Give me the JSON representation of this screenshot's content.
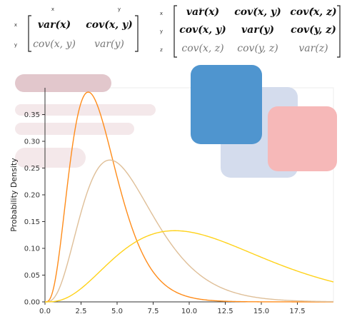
{
  "matrix2": {
    "col_headers": [
      "x",
      "y"
    ],
    "row_headers": [
      "x",
      "y"
    ],
    "rows": [
      [
        "var(x)",
        "cov(x, y)"
      ],
      [
        "cov(x, y)",
        "var(y)"
      ]
    ]
  },
  "matrix3": {
    "col_headers": [
      "x",
      "y",
      "z"
    ],
    "row_headers": [
      "x",
      "y",
      "z"
    ],
    "rows": [
      [
        "var(x)",
        "cov(x, y)",
        "cov(x, z)"
      ],
      [
        "cov(x, y)",
        "var(y)",
        "cov(y, z)"
      ],
      [
        "cov(x, z)",
        "cov(y, z)",
        "var(z)"
      ]
    ]
  },
  "chart_data": {
    "type": "line",
    "title": "",
    "xlabel": "",
    "ylabel": "Probability Density",
    "xlim": [
      0,
      20
    ],
    "ylim": [
      0,
      0.4
    ],
    "x_ticks": [
      "0.0",
      "2.5",
      "5.0",
      "7.5",
      "10.0",
      "12.5",
      "15.0",
      "17.5"
    ],
    "y_ticks": [
      "0.00",
      "0.05",
      "0.10",
      "0.15",
      "0.20",
      "0.25",
      "0.30",
      "0.35"
    ],
    "grid": false,
    "legend": "none",
    "series": [
      {
        "color": "#ff8c1a",
        "peak_x": 3.0,
        "peak_y": 0.392,
        "dispersion": 0.9
      },
      {
        "color": "#dfbf98",
        "peak_x": 4.5,
        "peak_y": 0.265,
        "dispersion": 1.4
      },
      {
        "color": "#ffd21a",
        "peak_x": 9.0,
        "peak_y": 0.133,
        "dispersion": 3.0
      }
    ],
    "decorations": {
      "colors": {
        "blue": "#4f95cf",
        "lavender": "#d4dced",
        "salmon": "#f6b8b8",
        "pill_dark": "#e2c7cc",
        "pill_light": "#f4e8ea",
        "axis": "#333333"
      }
    }
  }
}
